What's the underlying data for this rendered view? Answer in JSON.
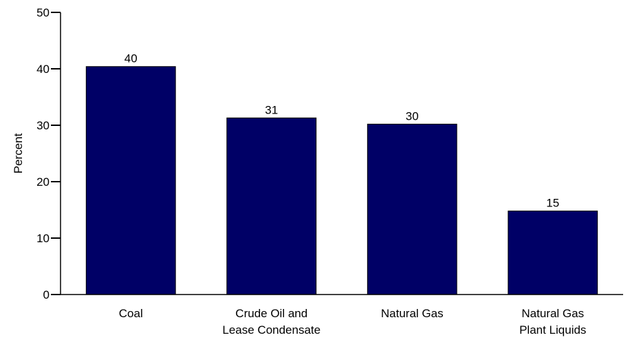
{
  "chart_data": {
    "type": "bar",
    "categories": [
      [
        "Coal"
      ],
      [
        "Crude Oil and",
        "Lease Condensate"
      ],
      [
        "Natural Gas"
      ],
      [
        "Natural Gas",
        "Plant Liquids"
      ]
    ],
    "values": [
      40.4,
      31.3,
      30.2,
      14.8
    ],
    "data_labels": [
      "40",
      "31",
      "30",
      "15"
    ],
    "ylabel": "Percent",
    "ylim": [
      0,
      50
    ],
    "yticks": [
      0,
      10,
      20,
      30,
      40,
      50
    ],
    "bar_color": "#000066",
    "grid": false,
    "legend": "none"
  }
}
